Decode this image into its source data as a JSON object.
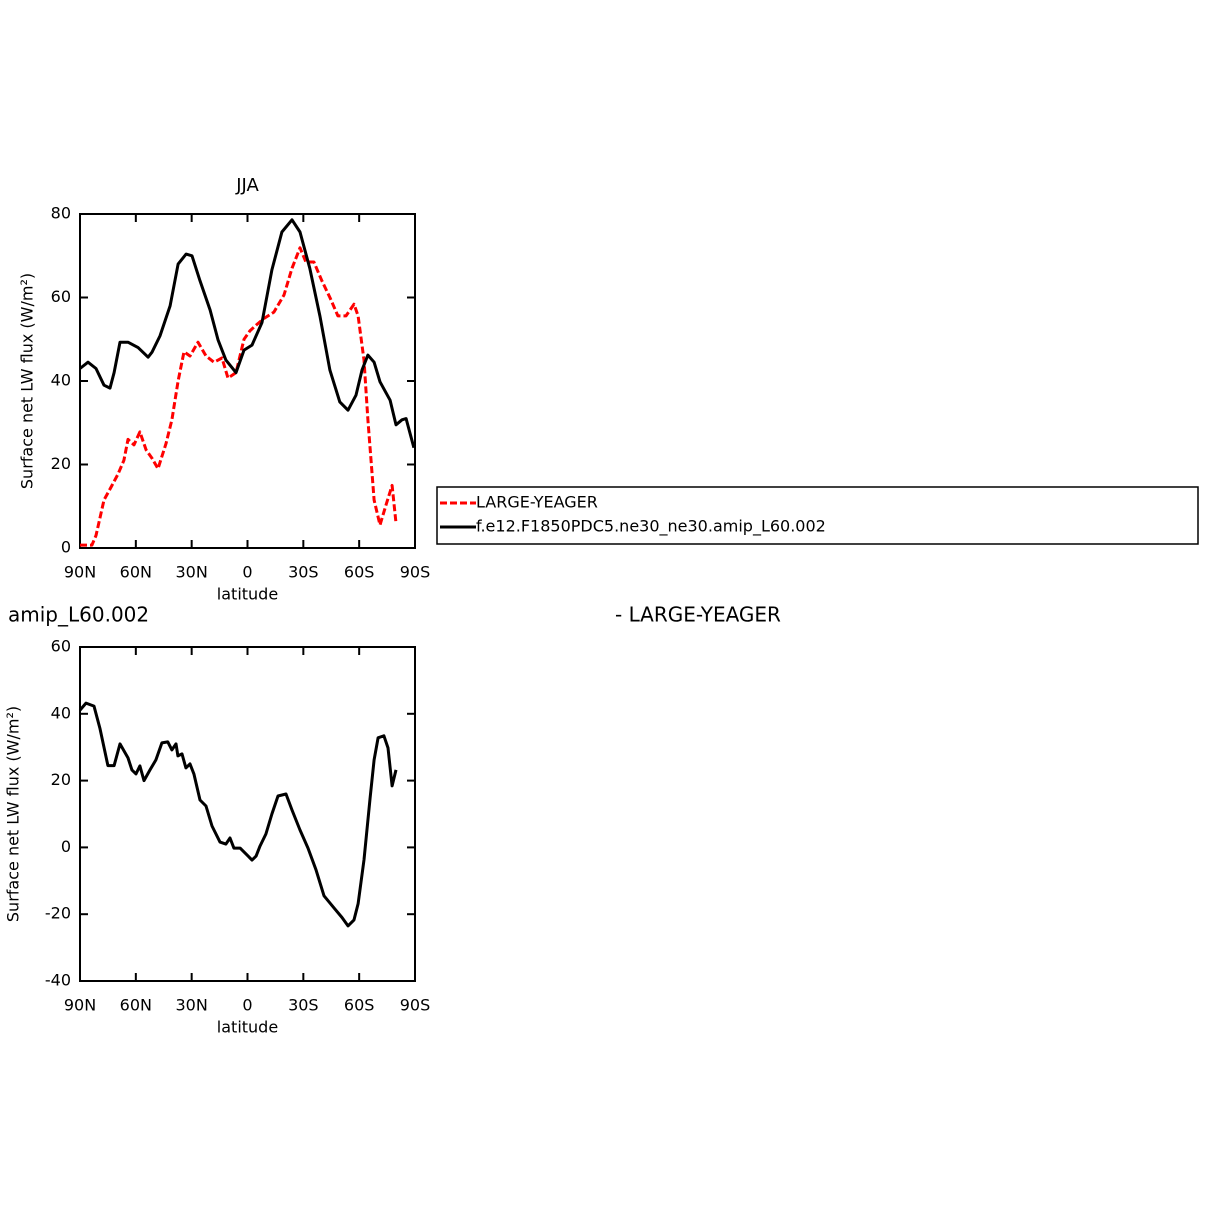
{
  "chart_data": [
    {
      "type": "line",
      "title": "JJA",
      "xlabel": "latitude",
      "ylabel": "Surface net LW flux (W/m²)",
      "xlim": [
        90,
        -90
      ],
      "ylim": [
        0,
        80
      ],
      "xticks": [
        {
          "value": 90,
          "label": "90N"
        },
        {
          "value": 60,
          "label": "60N"
        },
        {
          "value": 30,
          "label": "30N"
        },
        0,
        {
          "value": -30,
          "label": "30S"
        },
        {
          "value": -60,
          "label": "60S"
        },
        {
          "value": -90,
          "label": "90S"
        }
      ],
      "yticks": [
        0,
        20,
        40,
        60,
        80
      ],
      "legend": "right",
      "series": [
        {
          "name": "LARGE-YEAGER",
          "color": "#ff0000",
          "line_style": "dashed",
          "x": [
            90,
            83.6,
            81.4,
            77.1,
            72.8,
            69.6,
            66.4,
            64.2,
            61,
            57.8,
            54.5,
            51.3,
            48.1,
            43.8,
            40.6,
            37.3,
            34.1,
            30.9,
            26.6,
            22.3,
            18,
            13.7,
            10.5,
            6.2,
            1.9,
            -1.3,
            -4.6,
            -8.9,
            -14.2,
            -19.6,
            -23.9,
            -28.2,
            -31.4,
            -35.7,
            -40,
            -44.3,
            -48.6,
            -52.9,
            -57.2,
            -59.4,
            -62.6,
            -64.7,
            -68,
            -71.2,
            -74.4,
            -77.7,
            -79.8
          ],
          "values": [
            0.7,
            0.7,
            3,
            11.5,
            15,
            17.7,
            21,
            26,
            24.7,
            27.8,
            23.5,
            21.5,
            19,
            25,
            30.7,
            40,
            47,
            46,
            49.3,
            46,
            44.5,
            45.5,
            40.7,
            42,
            50,
            52,
            53.4,
            55,
            56.5,
            60.6,
            67,
            71.9,
            68.5,
            68.5,
            64,
            60,
            55.6,
            55.6,
            58.4,
            55.6,
            45,
            30.7,
            11.5,
            5.5,
            10.3,
            15,
            6
          ]
        },
        {
          "name": "f.e12.F1850PDC5.ne30_ne30.amip_L60.002",
          "color": "#000000",
          "line_style": "solid",
          "x": [
            90,
            85.7,
            81.4,
            77.1,
            73.9,
            71.7,
            68.5,
            64.2,
            58.8,
            53.4,
            51.3,
            47,
            41.6,
            37.3,
            33,
            29.8,
            25.5,
            20.1,
            15.8,
            11.6,
            6.2,
            1.9,
            -2.4,
            -7.8,
            -13.1,
            -18.5,
            -23.9,
            -28.2,
            -33.5,
            -38.9,
            -44.3,
            -49.6,
            -54,
            -58.3,
            -61.5,
            -64.7,
            -68,
            -71.2,
            -76.6,
            -79.8,
            -83,
            -85.2,
            -89.4
          ],
          "values": [
            43,
            44.5,
            43,
            39,
            38.3,
            42,
            49.3,
            49.3,
            48,
            45.7,
            46.9,
            50.8,
            58,
            68,
            70.4,
            70,
            64,
            57,
            49.8,
            45,
            42,
            47.4,
            48.6,
            54,
            66.6,
            75.7,
            78.6,
            75.7,
            67,
            55.6,
            42.6,
            35,
            33,
            36.6,
            42.6,
            46.2,
            44.5,
            39.8,
            35.4,
            29.5,
            30.7,
            31,
            24
          ]
        }
      ]
    },
    {
      "type": "line",
      "left_title": "amip_L60.002",
      "right_title": "- LARGE-YEAGER",
      "xlabel": "latitude",
      "ylabel": "Surface net LW flux (W/m²)",
      "xlim": [
        90,
        -90
      ],
      "ylim": [
        -40,
        60
      ],
      "xticks": [
        {
          "value": 90,
          "label": "90N"
        },
        {
          "value": 60,
          "label": "60N"
        },
        {
          "value": 30,
          "label": "30N"
        },
        0,
        {
          "value": -30,
          "label": "30S"
        },
        {
          "value": -60,
          "label": "60S"
        },
        {
          "value": -90,
          "label": "90S"
        }
      ],
      "yticks": [
        -40,
        -20,
        0,
        20,
        40,
        60
      ],
      "series": [
        {
          "color": "#000000",
          "line_style": "solid",
          "x": [
            90,
            86.8,
            82.5,
            79.3,
            75,
            71.7,
            68.5,
            64.2,
            62.1,
            59.9,
            57.8,
            55.6,
            52.4,
            49.2,
            46,
            42.8,
            40.6,
            38.4,
            37.4,
            35.2,
            33.1,
            30.9,
            28.8,
            25.5,
            22.3,
            19.1,
            14.8,
            11.6,
            9.4,
            7.3,
            4,
            -0.3,
            -2.4,
            -4.6,
            -6.7,
            -9.9,
            -13.1,
            -16.4,
            -20.7,
            -23.9,
            -28.2,
            -32.5,
            -36.8,
            -41.1,
            -46.5,
            -50.8,
            -54,
            -57.2,
            -59.4,
            -62.6,
            -65.9,
            -68,
            -70.2,
            -73.3,
            -75.5,
            -77.7,
            -79.8
          ],
          "values": [
            41.1,
            43.2,
            42.3,
            35.7,
            24.5,
            24.5,
            31,
            26.8,
            23.2,
            22,
            24.4,
            20,
            23.2,
            26.2,
            31.3,
            31.6,
            29.2,
            31,
            27.4,
            28,
            23.8,
            25,
            22,
            14.2,
            12.4,
            6.4,
            1.6,
            1,
            2.8,
            -0.2,
            -0.2,
            -2.6,
            -3.8,
            -2.6,
            0.4,
            4,
            10,
            15.4,
            16,
            11.2,
            5.2,
            -0.2,
            -6.7,
            -14.5,
            -18.1,
            -21,
            -23.5,
            -21.7,
            -16.9,
            -3.7,
            14.8,
            26.2,
            32.8,
            33.4,
            29.8,
            18.4,
            23.2
          ]
        }
      ]
    }
  ]
}
